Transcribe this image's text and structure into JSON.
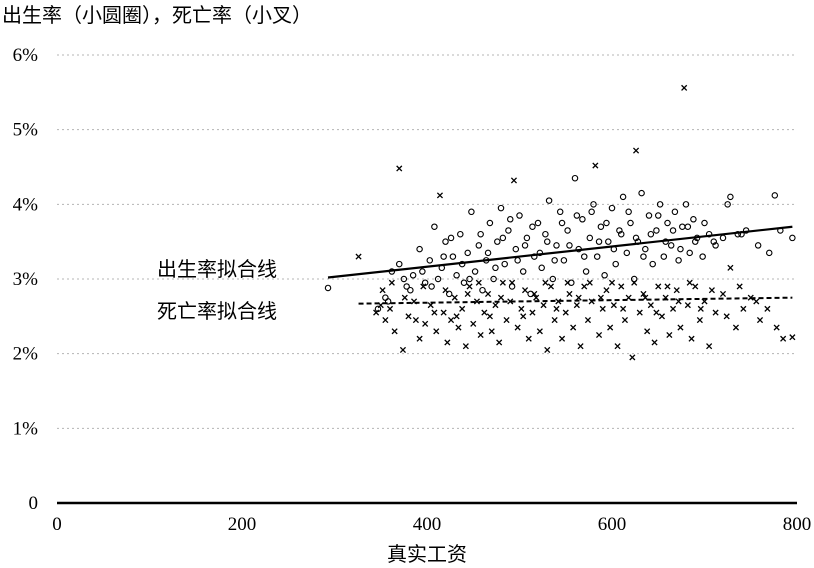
{
  "chart_data": {
    "type": "scatter",
    "title": "出生率（小圆圈），死亡率（小叉）",
    "xlabel": "真实工资",
    "ylabel": "",
    "xlim": [
      0,
      800
    ],
    "ylim": [
      0,
      6
    ],
    "x_ticks": [
      "0",
      "200",
      "400",
      "600",
      "800"
    ],
    "y_ticks": [
      "0",
      "1%",
      "2%",
      "3%",
      "4%",
      "5%",
      "6%"
    ],
    "grid": true,
    "series": [
      {
        "name": "出生率",
        "marker": "circle",
        "points": [
          [
            293,
            2.88
          ],
          [
            347,
            2.6
          ],
          [
            355,
            2.75
          ],
          [
            362,
            3.1
          ],
          [
            370,
            3.2
          ],
          [
            378,
            2.9
          ],
          [
            385,
            3.05
          ],
          [
            392,
            3.4
          ],
          [
            398,
            2.95
          ],
          [
            403,
            3.25
          ],
          [
            408,
            3.7
          ],
          [
            412,
            3.0
          ],
          [
            416,
            3.15
          ],
          [
            420,
            3.5
          ],
          [
            424,
            2.8
          ],
          [
            428,
            3.3
          ],
          [
            432,
            3.05
          ],
          [
            436,
            3.6
          ],
          [
            440,
            2.95
          ],
          [
            444,
            3.35
          ],
          [
            448,
            3.9
          ],
          [
            452,
            3.1
          ],
          [
            456,
            3.45
          ],
          [
            460,
            2.85
          ],
          [
            464,
            3.25
          ],
          [
            468,
            3.75
          ],
          [
            472,
            3.0
          ],
          [
            476,
            3.5
          ],
          [
            480,
            3.95
          ],
          [
            484,
            3.2
          ],
          [
            488,
            3.65
          ],
          [
            492,
            2.9
          ],
          [
            496,
            3.4
          ],
          [
            500,
            3.85
          ],
          [
            504,
            3.1
          ],
          [
            508,
            3.55
          ],
          [
            512,
            2.8
          ],
          [
            516,
            3.3
          ],
          [
            520,
            3.75
          ],
          [
            524,
            3.15
          ],
          [
            528,
            3.6
          ],
          [
            532,
            4.05
          ],
          [
            536,
            3.0
          ],
          [
            540,
            3.45
          ],
          [
            544,
            3.9
          ],
          [
            548,
            3.25
          ],
          [
            552,
            3.65
          ],
          [
            556,
            2.95
          ],
          [
            560,
            4.35
          ],
          [
            564,
            3.4
          ],
          [
            568,
            3.8
          ],
          [
            572,
            3.1
          ],
          [
            576,
            3.55
          ],
          [
            580,
            4.0
          ],
          [
            584,
            3.3
          ],
          [
            588,
            3.7
          ],
          [
            592,
            3.05
          ],
          [
            596,
            3.5
          ],
          [
            600,
            3.95
          ],
          [
            604,
            3.2
          ],
          [
            608,
            3.65
          ],
          [
            612,
            4.1
          ],
          [
            616,
            3.35
          ],
          [
            620,
            3.75
          ],
          [
            624,
            3.0
          ],
          [
            628,
            3.5
          ],
          [
            632,
            4.15
          ],
          [
            636,
            3.4
          ],
          [
            640,
            3.85
          ],
          [
            644,
            3.2
          ],
          [
            648,
            3.65
          ],
          [
            652,
            4.0
          ],
          [
            656,
            3.3
          ],
          [
            660,
            3.75
          ],
          [
            664,
            3.45
          ],
          [
            668,
            3.9
          ],
          [
            672,
            3.25
          ],
          [
            676,
            3.7
          ],
          [
            680,
            4.0
          ],
          [
            684,
            3.35
          ],
          [
            688,
            3.8
          ],
          [
            692,
            3.55
          ],
          [
            698,
            3.3
          ],
          [
            705,
            3.6
          ],
          [
            712,
            3.45
          ],
          [
            720,
            3.55
          ],
          [
            728,
            4.1
          ],
          [
            736,
            3.6
          ],
          [
            745,
            3.65
          ],
          [
            758,
            3.45
          ],
          [
            770,
            3.35
          ],
          [
            776,
            4.12
          ],
          [
            782,
            3.65
          ],
          [
            795,
            3.55
          ],
          [
            358,
            2.7
          ],
          [
            375,
            3.0
          ],
          [
            382,
            2.85
          ],
          [
            395,
            3.1
          ],
          [
            405,
            2.9
          ],
          [
            418,
            3.3
          ],
          [
            426,
            3.55
          ],
          [
            438,
            3.2
          ],
          [
            446,
            3.0
          ],
          [
            458,
            3.6
          ],
          [
            466,
            3.35
          ],
          [
            474,
            3.15
          ],
          [
            482,
            3.55
          ],
          [
            490,
            3.8
          ],
          [
            498,
            3.25
          ],
          [
            506,
            3.45
          ],
          [
            514,
            3.7
          ],
          [
            522,
            3.35
          ],
          [
            530,
            3.5
          ],
          [
            538,
            3.25
          ],
          [
            546,
            3.75
          ],
          [
            554,
            3.45
          ],
          [
            562,
            3.85
          ],
          [
            570,
            3.3
          ],
          [
            578,
            3.9
          ],
          [
            586,
            3.5
          ],
          [
            594,
            3.75
          ],
          [
            602,
            3.4
          ],
          [
            610,
            3.6
          ],
          [
            618,
            3.9
          ],
          [
            626,
            3.55
          ],
          [
            634,
            3.3
          ],
          [
            642,
            3.6
          ],
          [
            650,
            3.85
          ],
          [
            658,
            3.5
          ],
          [
            666,
            3.65
          ],
          [
            674,
            3.4
          ],
          [
            682,
            3.7
          ],
          [
            690,
            3.5
          ],
          [
            700,
            3.75
          ],
          [
            710,
            3.5
          ],
          [
            725,
            4.0
          ],
          [
            740,
            3.6
          ]
        ]
      },
      {
        "name": "死亡率",
        "marker": "x",
        "points": [
          [
            326,
            3.3
          ],
          [
            345,
            2.55
          ],
          [
            350,
            2.65
          ],
          [
            355,
            2.45
          ],
          [
            360,
            2.6
          ],
          [
            365,
            2.3
          ],
          [
            370,
            4.48
          ],
          [
            374,
            2.05
          ],
          [
            380,
            2.5
          ],
          [
            386,
            2.7
          ],
          [
            392,
            2.2
          ],
          [
            398,
            2.4
          ],
          [
            404,
            2.65
          ],
          [
            410,
            2.3
          ],
          [
            414,
            4.12
          ],
          [
            418,
            2.55
          ],
          [
            422,
            2.15
          ],
          [
            426,
            2.45
          ],
          [
            430,
            2.75
          ],
          [
            434,
            2.35
          ],
          [
            438,
            2.6
          ],
          [
            442,
            2.1
          ],
          [
            446,
            2.9
          ],
          [
            450,
            2.4
          ],
          [
            454,
            2.7
          ],
          [
            458,
            2.25
          ],
          [
            462,
            2.55
          ],
          [
            466,
            2.8
          ],
          [
            470,
            2.3
          ],
          [
            474,
            2.65
          ],
          [
            478,
            2.15
          ],
          [
            482,
            2.95
          ],
          [
            486,
            2.45
          ],
          [
            490,
            2.7
          ],
          [
            494,
            4.32
          ],
          [
            498,
            2.35
          ],
          [
            502,
            2.6
          ],
          [
            506,
            2.85
          ],
          [
            510,
            2.2
          ],
          [
            514,
            2.55
          ],
          [
            518,
            2.75
          ],
          [
            522,
            2.3
          ],
          [
            526,
            2.65
          ],
          [
            530,
            2.05
          ],
          [
            534,
            2.9
          ],
          [
            538,
            2.45
          ],
          [
            542,
            2.7
          ],
          [
            546,
            2.2
          ],
          [
            550,
            2.55
          ],
          [
            554,
            2.8
          ],
          [
            558,
            2.35
          ],
          [
            562,
            2.65
          ],
          [
            566,
            2.1
          ],
          [
            570,
            2.9
          ],
          [
            574,
            2.45
          ],
          [
            578,
            2.7
          ],
          [
            582,
            4.52
          ],
          [
            586,
            2.25
          ],
          [
            590,
            2.6
          ],
          [
            594,
            2.85
          ],
          [
            598,
            2.35
          ],
          [
            602,
            2.65
          ],
          [
            606,
            2.1
          ],
          [
            610,
            2.9
          ],
          [
            614,
            2.45
          ],
          [
            618,
            2.75
          ],
          [
            622,
            1.95
          ],
          [
            626,
            4.72
          ],
          [
            630,
            2.55
          ],
          [
            634,
            2.8
          ],
          [
            638,
            2.3
          ],
          [
            642,
            2.65
          ],
          [
            646,
            2.15
          ],
          [
            650,
            2.9
          ],
          [
            654,
            2.5
          ],
          [
            658,
            2.75
          ],
          [
            662,
            2.25
          ],
          [
            666,
            2.6
          ],
          [
            670,
            2.85
          ],
          [
            674,
            2.35
          ],
          [
            678,
            5.56
          ],
          [
            682,
            2.65
          ],
          [
            686,
            2.2
          ],
          [
            690,
            2.9
          ],
          [
            695,
            2.45
          ],
          [
            700,
            2.7
          ],
          [
            705,
            2.1
          ],
          [
            712,
            2.55
          ],
          [
            720,
            2.8
          ],
          [
            728,
            3.15
          ],
          [
            734,
            2.35
          ],
          [
            742,
            2.6
          ],
          [
            750,
            2.75
          ],
          [
            760,
            2.45
          ],
          [
            768,
            2.6
          ],
          [
            778,
            2.35
          ],
          [
            785,
            2.2
          ],
          [
            795,
            2.22
          ],
          [
            352,
            2.85
          ],
          [
            362,
            2.95
          ],
          [
            376,
            2.75
          ],
          [
            388,
            2.45
          ],
          [
            396,
            2.9
          ],
          [
            408,
            2.55
          ],
          [
            420,
            2.85
          ],
          [
            432,
            2.5
          ],
          [
            444,
            2.8
          ],
          [
            456,
            2.95
          ],
          [
            468,
            2.5
          ],
          [
            480,
            2.75
          ],
          [
            492,
            2.95
          ],
          [
            504,
            2.5
          ],
          [
            516,
            2.8
          ],
          [
            528,
            2.95
          ],
          [
            540,
            2.6
          ],
          [
            552,
            2.95
          ],
          [
            564,
            2.75
          ],
          [
            576,
            2.95
          ],
          [
            588,
            2.75
          ],
          [
            600,
            2.95
          ],
          [
            612,
            2.6
          ],
          [
            624,
            2.95
          ],
          [
            636,
            2.75
          ],
          [
            648,
            2.55
          ],
          [
            660,
            2.9
          ],
          [
            672,
            2.7
          ],
          [
            684,
            2.95
          ],
          [
            696,
            2.6
          ],
          [
            708,
            2.85
          ],
          [
            724,
            2.5
          ],
          [
            738,
            2.9
          ],
          [
            756,
            2.7
          ]
        ]
      }
    ],
    "fit_lines": [
      {
        "label": "出生率拟合线",
        "style": "solid",
        "x": [
          293,
          795
        ],
        "y": [
          3.02,
          3.7
        ]
      },
      {
        "label": "死亡率拟合线",
        "style": "dashed",
        "x": [
          326,
          795
        ],
        "y": [
          2.67,
          2.75
        ]
      }
    ]
  }
}
